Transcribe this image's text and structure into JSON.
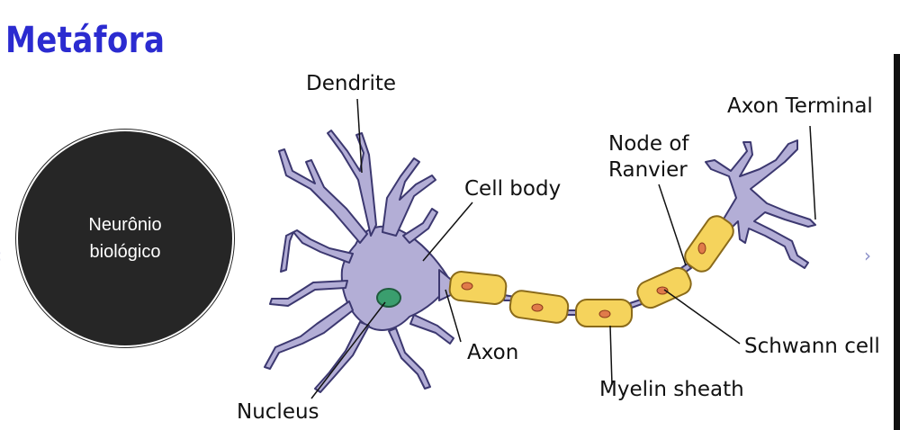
{
  "slide": {
    "title": "Metáfora",
    "circle_lines": [
      "Neurônio",
      "biológico"
    ],
    "nav": {
      "prev": "‹",
      "next": "›"
    }
  },
  "diagram": {
    "labels": {
      "dendrite": "Dendrite",
      "axon_terminal": "Axon Terminal",
      "node_of_ranvier_1": "Node of",
      "node_of_ranvier_2": "Ranvier",
      "cell_body": "Cell body",
      "axon": "Axon",
      "schwann_cell": "Schwann cell",
      "myelin_sheath": "Myelin sheath",
      "nucleus": "Nucleus"
    },
    "colors": {
      "neuron_fill": "#b3aed6",
      "neuron_stroke": "#3c3870",
      "myelin_fill": "#f5d35c",
      "myelin_stroke": "#8a6a1a",
      "schwann_nucleus": "#e07b4a",
      "nucleus_fill": "#3a9e6e"
    }
  }
}
